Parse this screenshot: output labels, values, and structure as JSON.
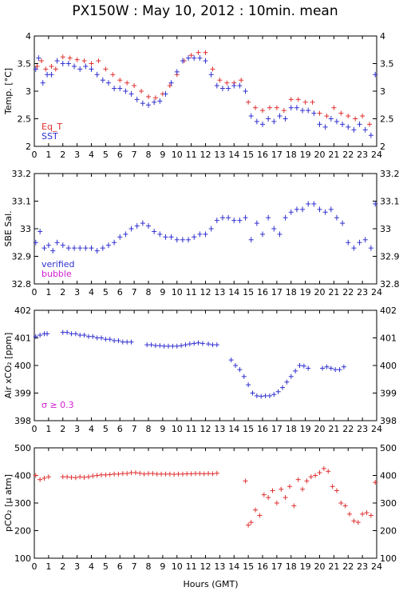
{
  "title": "PX150W : May 10, 2012 : 10min. mean",
  "x_axis_label": "Hours (GMT)",
  "x_ticks": [
    "0",
    "1",
    "2",
    "3",
    "4",
    "5",
    "6",
    "7",
    "8",
    "9",
    "10",
    "11",
    "12",
    "13",
    "14",
    "15",
    "16",
    "17",
    "18",
    "19",
    "20",
    "21",
    "22",
    "23",
    "24"
  ],
  "colors": {
    "red": "#e03030",
    "blue": "#3030d0",
    "magenta": "#d020d0"
  },
  "chart_data": [
    {
      "type": "scatter",
      "ylabel": "Temp. [°C]",
      "xlim": [
        0,
        24
      ],
      "ylim": [
        2,
        4
      ],
      "y_ticks": [
        "2",
        "2.5",
        "3",
        "3.5",
        "4"
      ],
      "y_tick_values": [
        2,
        2.5,
        3,
        3.5,
        4
      ],
      "legend": [
        "Eq_T",
        "SST"
      ],
      "annotation": "",
      "series": [
        {
          "name": "Eq_T",
          "color": "red",
          "errbar": 0.0,
          "x": [
            0.2,
            0.5,
            0.8,
            1.2,
            1.5,
            2.0,
            2.5,
            3.0,
            3.5,
            4.0,
            4.5,
            5.0,
            5.5,
            6.0,
            6.5,
            7.0,
            7.5,
            8.0,
            8.5,
            9.0,
            9.5,
            10.0,
            10.5,
            11.0,
            11.5,
            12.0,
            12.5,
            13.0,
            13.5,
            14.0,
            14.5,
            15.0,
            15.5,
            16.0,
            16.5,
            17.0,
            17.5,
            18.0,
            18.5,
            19.0,
            19.5,
            20.0,
            20.5,
            21.0,
            21.5,
            22.0,
            22.5,
            23.0,
            23.5
          ],
          "y": [
            3.45,
            3.55,
            3.4,
            3.45,
            3.4,
            3.62,
            3.6,
            3.57,
            3.55,
            3.5,
            3.55,
            3.4,
            3.3,
            3.2,
            3.15,
            3.1,
            3.0,
            2.9,
            2.88,
            2.95,
            3.1,
            3.3,
            3.55,
            3.65,
            3.7,
            3.7,
            3.4,
            3.2,
            3.15,
            3.15,
            3.2,
            2.8,
            2.7,
            2.65,
            2.7,
            2.7,
            2.65,
            2.85,
            2.85,
            2.8,
            2.8,
            2.6,
            2.55,
            2.7,
            2.6,
            2.55,
            2.5,
            2.55,
            2.4
          ]
        },
        {
          "name": "SST",
          "color": "blue",
          "errbar": 0.05,
          "x": [
            0.1,
            0.3,
            0.6,
            0.9,
            1.2,
            1.6,
            2.0,
            2.4,
            2.8,
            3.2,
            3.6,
            4.0,
            4.4,
            4.8,
            5.2,
            5.6,
            6.0,
            6.4,
            6.8,
            7.2,
            7.6,
            8.0,
            8.4,
            8.8,
            9.2,
            9.6,
            10.0,
            10.4,
            10.8,
            11.2,
            11.6,
            12.0,
            12.4,
            12.8,
            13.2,
            13.6,
            14.0,
            14.4,
            14.8,
            15.2,
            15.6,
            16.0,
            16.4,
            16.8,
            17.2,
            17.6,
            18.0,
            18.4,
            18.8,
            19.2,
            19.6,
            20.0,
            20.4,
            20.8,
            21.2,
            21.6,
            22.0,
            22.4,
            22.8,
            23.2,
            23.6,
            23.9
          ],
          "y": [
            3.4,
            3.6,
            3.15,
            3.3,
            3.3,
            3.55,
            3.5,
            3.5,
            3.45,
            3.4,
            3.45,
            3.4,
            3.3,
            3.2,
            3.15,
            3.05,
            3.05,
            3.0,
            2.95,
            2.85,
            2.78,
            2.75,
            2.8,
            2.82,
            2.95,
            3.15,
            3.35,
            3.55,
            3.6,
            3.6,
            3.6,
            3.55,
            3.3,
            3.1,
            3.05,
            3.05,
            3.1,
            3.1,
            3.0,
            2.55,
            2.45,
            2.4,
            2.5,
            2.45,
            2.55,
            2.5,
            2.7,
            2.7,
            2.65,
            2.65,
            2.6,
            2.4,
            2.35,
            2.5,
            2.45,
            2.4,
            2.35,
            2.3,
            2.4,
            2.3,
            2.2,
            3.3
          ]
        }
      ]
    },
    {
      "type": "scatter",
      "ylabel": "SBE Sal.",
      "xlim": [
        0,
        24
      ],
      "ylim": [
        32.8,
        33.2
      ],
      "y_ticks": [
        "32.8",
        "32.9",
        "33",
        "33.1",
        "33.2"
      ],
      "y_tick_values": [
        32.8,
        32.9,
        33.0,
        33.1,
        33.2
      ],
      "legend": [
        "verified",
        "bubble"
      ],
      "annotation": "",
      "series": [
        {
          "name": "verified",
          "color": "blue",
          "errbar": 0.01,
          "x": [
            0.1,
            0.4,
            0.7,
            1.0,
            1.3,
            1.6,
            2.0,
            2.4,
            2.8,
            3.2,
            3.6,
            4.0,
            4.4,
            4.8,
            5.2,
            5.6,
            6.0,
            6.4,
            6.8,
            7.2,
            7.6,
            8.0,
            8.4,
            8.8,
            9.2,
            9.6,
            10.0,
            10.4,
            10.8,
            11.2,
            11.6,
            12.0,
            12.4,
            12.8,
            13.2,
            13.6,
            14.0,
            14.4,
            14.8,
            15.2,
            15.6,
            16.0,
            16.4,
            16.8,
            17.2,
            17.6,
            18.0,
            18.4,
            18.8,
            19.2,
            19.6,
            20.0,
            20.4,
            20.8,
            21.2,
            21.6,
            22.0,
            22.4,
            22.8,
            23.2,
            23.6,
            23.9
          ],
          "y": [
            32.95,
            32.99,
            32.93,
            32.94,
            32.92,
            32.95,
            32.94,
            32.93,
            32.93,
            32.93,
            32.93,
            32.93,
            32.92,
            32.93,
            32.94,
            32.95,
            32.97,
            32.98,
            33.0,
            33.01,
            33.02,
            33.01,
            32.99,
            32.98,
            32.97,
            32.97,
            32.96,
            32.96,
            32.96,
            32.97,
            32.98,
            32.98,
            33.0,
            33.03,
            33.04,
            33.04,
            33.03,
            33.03,
            33.04,
            32.96,
            33.02,
            32.98,
            33.04,
            33.0,
            32.98,
            33.04,
            33.06,
            33.07,
            33.07,
            33.09,
            33.09,
            33.07,
            33.06,
            33.07,
            33.04,
            33.02,
            32.95,
            32.93,
            32.95,
            32.96,
            32.93,
            33.09
          ]
        },
        {
          "name": "bubble",
          "color": "magenta",
          "errbar": 0.0,
          "x": [],
          "y": []
        }
      ]
    },
    {
      "type": "scatter",
      "ylabel": "Air xCO₂ [ppm]",
      "xlim": [
        0,
        24
      ],
      "ylim": [
        398,
        402
      ],
      "y_ticks": [
        "398",
        "399",
        "400",
        "401",
        "402"
      ],
      "y_tick_values": [
        398,
        399,
        400,
        401,
        402
      ],
      "legend": [],
      "annotation": "σ ≥ 0.3",
      "series": [
        {
          "name": "",
          "color": "blue",
          "errbar": 0.03,
          "x": [
            0.1,
            0.4,
            0.7,
            0.9,
            2.0,
            2.3,
            2.6,
            2.9,
            3.2,
            3.5,
            3.8,
            4.1,
            4.4,
            4.7,
            5.0,
            5.3,
            5.6,
            5.9,
            6.2,
            6.5,
            6.8,
            7.9,
            8.2,
            8.5,
            8.8,
            9.1,
            9.4,
            9.7,
            10.0,
            10.3,
            10.6,
            10.9,
            11.2,
            11.5,
            11.8,
            12.2,
            12.5,
            12.8,
            13.8,
            14.1,
            14.4,
            14.7,
            15.0,
            15.3,
            15.6,
            15.9,
            16.2,
            16.5,
            16.8,
            17.1,
            17.4,
            17.7,
            18.0,
            18.3,
            18.6,
            18.9,
            19.2,
            20.2,
            20.5,
            20.8,
            21.1,
            21.4,
            21.7
          ],
          "y": [
            401.05,
            401.1,
            401.15,
            401.15,
            401.2,
            401.2,
            401.15,
            401.15,
            401.1,
            401.1,
            401.05,
            401.05,
            401.0,
            401.0,
            400.95,
            400.95,
            400.9,
            400.9,
            400.85,
            400.85,
            400.85,
            400.75,
            400.75,
            400.72,
            400.72,
            400.7,
            400.7,
            400.7,
            400.7,
            400.72,
            400.75,
            400.78,
            400.8,
            400.82,
            400.8,
            400.78,
            400.75,
            400.75,
            400.2,
            400.0,
            399.85,
            399.6,
            399.3,
            399.0,
            398.9,
            398.88,
            398.9,
            398.9,
            398.95,
            399.05,
            399.2,
            399.4,
            399.6,
            399.8,
            400.0,
            399.98,
            399.9,
            399.9,
            399.95,
            399.9,
            399.85,
            399.85,
            399.95
          ]
        }
      ]
    },
    {
      "type": "scatter",
      "ylabel": "pCO₂ [µ atm]",
      "xlim": [
        0,
        24
      ],
      "ylim": [
        100,
        500
      ],
      "y_ticks": [
        "100",
        "200",
        "300",
        "400",
        "500"
      ],
      "y_tick_values": [
        100,
        200,
        300,
        400,
        500
      ],
      "legend": [],
      "annotation": "",
      "series": [
        {
          "name": "",
          "color": "red",
          "errbar": 8,
          "x": [
            0.1,
            0.4,
            0.7,
            1.0,
            2.0,
            2.3,
            2.6,
            2.9,
            3.2,
            3.5,
            3.8,
            4.1,
            4.4,
            4.7,
            5.0,
            5.3,
            5.6,
            5.9,
            6.2,
            6.5,
            6.8,
            7.1,
            7.4,
            7.7,
            8.0,
            8.3,
            8.6,
            8.9,
            9.2,
            9.5,
            9.8,
            10.1,
            10.4,
            10.7,
            11.0,
            11.3,
            11.6,
            11.9,
            12.2,
            12.5,
            12.8,
            14.8,
            15.0,
            15.2,
            15.5,
            15.8,
            16.1,
            16.4,
            16.7,
            17.0,
            17.3,
            17.6,
            17.9,
            18.2,
            18.5,
            18.8,
            19.1,
            19.4,
            19.7,
            20.0,
            20.3,
            20.6,
            20.9,
            21.2,
            21.5,
            21.8,
            22.1,
            22.4,
            22.7,
            23.0,
            23.3,
            23.6,
            23.9
          ],
          "y": [
            400,
            385,
            390,
            395,
            395,
            395,
            393,
            392,
            395,
            393,
            395,
            398,
            400,
            402,
            402,
            403,
            405,
            405,
            407,
            407,
            410,
            410,
            408,
            405,
            407,
            407,
            405,
            405,
            405,
            405,
            404,
            405,
            405,
            406,
            406,
            407,
            407,
            406,
            407,
            406,
            408,
            380,
            220,
            230,
            275,
            255,
            330,
            320,
            345,
            300,
            350,
            320,
            360,
            290,
            385,
            350,
            380,
            395,
            400,
            410,
            425,
            415,
            360,
            345,
            300,
            290,
            260,
            235,
            230,
            260,
            265,
            255,
            375
          ]
        }
      ]
    }
  ]
}
